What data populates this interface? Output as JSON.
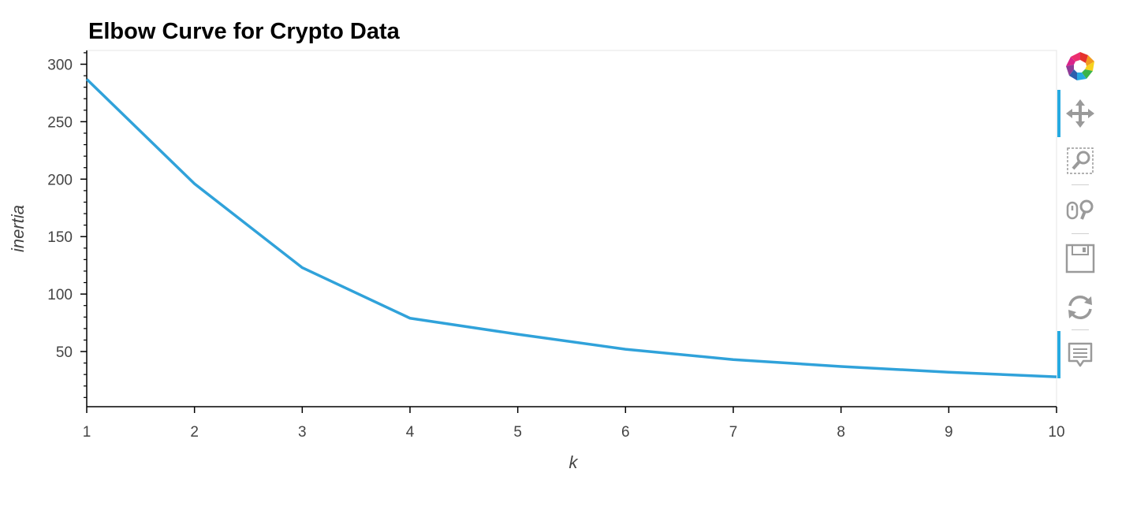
{
  "chart_data": {
    "type": "line",
    "title": "Elbow Curve for Crypto Data",
    "xlabel": "k",
    "ylabel": "inertia",
    "x": [
      1,
      2,
      3,
      4,
      5,
      6,
      7,
      8,
      9,
      10
    ],
    "series": [
      {
        "values": [
          287,
          196,
          123,
          79,
          65,
          52,
          43,
          37,
          32,
          28
        ],
        "color": "#30a2da"
      }
    ],
    "xlim": [
      1,
      10
    ],
    "ylim": [
      2,
      312
    ],
    "xticks": [
      "1",
      "2",
      "3",
      "4",
      "5",
      "6",
      "7",
      "8",
      "9",
      "10"
    ],
    "yticks": [
      "50",
      "100",
      "150",
      "200",
      "250",
      "300"
    ],
    "grid": false,
    "legend": "none"
  },
  "toolbar": {
    "tools": [
      {
        "name": "bokeh-logo-icon"
      },
      {
        "name": "pan-icon",
        "active": true
      },
      {
        "name": "box-zoom-icon"
      },
      {
        "name": "wheel-zoom-icon"
      },
      {
        "name": "save-icon"
      },
      {
        "name": "reset-icon"
      },
      {
        "name": "hover-icon",
        "active": true
      }
    ],
    "accent_color": "#26aae1"
  }
}
